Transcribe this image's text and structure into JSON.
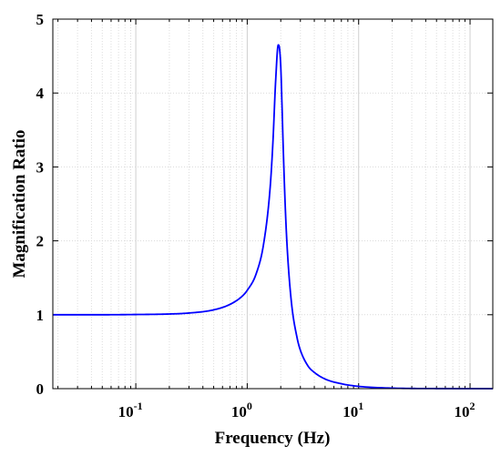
{
  "chart_data": {
    "type": "line",
    "title": "",
    "xlabel": "Frequency (Hz)",
    "ylabel": "Magnification Ratio",
    "xscale": "log",
    "xlim": [
      0.018,
      160
    ],
    "ylim": [
      0,
      5
    ],
    "grid": true,
    "x_ticks": [
      {
        "base": "10",
        "exp": "-1"
      },
      {
        "base": "10",
        "exp": "0"
      },
      {
        "base": "10",
        "exp": "1"
      },
      {
        "base": "10",
        "exp": "2"
      }
    ],
    "y_ticks": [
      "0",
      "1",
      "2",
      "3",
      "4",
      "5"
    ],
    "line_color": "#0000ff",
    "series": [
      {
        "x": [
          0.018,
          0.03,
          0.05,
          0.1,
          0.2,
          0.3,
          0.5,
          0.7,
          0.9,
          1.0,
          1.2,
          1.4,
          1.6,
          1.7,
          1.8,
          1.9,
          1.95,
          2.0,
          2.05,
          2.1,
          2.2,
          2.3,
          2.5,
          2.8,
          3.0,
          3.5,
          4.0,
          5.0,
          7.0,
          10,
          20,
          50,
          100,
          160
        ],
        "y": [
          1.0,
          1.0,
          1.0,
          1.003,
          1.01,
          1.023,
          1.066,
          1.14,
          1.25,
          1.33,
          1.55,
          1.95,
          2.69,
          3.33,
          4.17,
          4.65,
          4.6,
          4.36,
          3.85,
          3.3,
          2.42,
          1.83,
          1.15,
          0.69,
          0.52,
          0.31,
          0.22,
          0.13,
          0.066,
          0.031,
          0.007,
          0.001,
          0.0003,
          0.0001
        ]
      }
    ]
  }
}
